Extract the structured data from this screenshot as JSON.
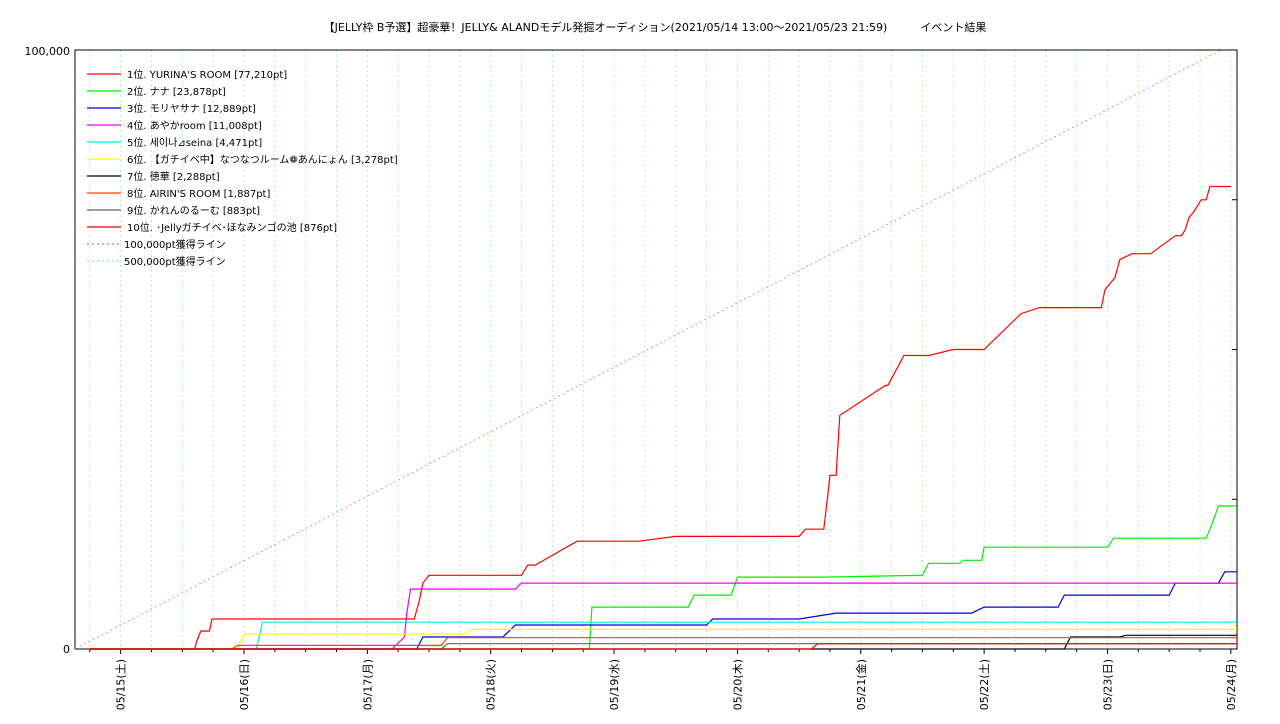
{
  "chart_data": {
    "type": "line",
    "title": "【JELLY枠 B予選】超豪華！JELLY& ALANDモデル発掘オーディション(2021/05/14 13:00〜2021/05/23 21:59)　　　イベント結果",
    "xlabel": "",
    "ylabel": "",
    "ylim": [
      0,
      100000
    ],
    "y_ticks": [
      "0",
      "100,000"
    ],
    "x_ticks": [
      "05/15(土)",
      "05/16(日)",
      "05/17(月)",
      "05/18(火)",
      "05/19(水)",
      "05/20(木)",
      "05/21(金)",
      "05/22(土)",
      "05/23(日)",
      "05/24(月)"
    ],
    "x_unit": "days since 2021-05-15 00:00",
    "x_range": [
      -0.37,
      9.05
    ],
    "grid": true,
    "legend_position": "top-left",
    "series": [
      {
        "name": "1位. YURINA'S ROOM [77,210pt]",
        "color": "#ff0000",
        "x": [
          -0.25,
          0.6,
          0.62,
          0.65,
          0.72,
          0.74,
          1.5,
          1.65,
          1.68,
          1.7,
          2.38,
          2.42,
          2.45,
          2.5,
          2.53,
          2.6,
          3.25,
          3.3,
          3.32,
          3.36,
          3.7,
          3.74,
          4.2,
          4.5,
          4.8,
          4.84,
          5.5,
          5.55,
          5.6,
          5.62,
          5.7,
          5.74,
          5.75,
          5.8,
          5.83,
          6.2,
          6.22,
          6.35,
          6.4,
          6.5,
          6.55,
          6.75,
          7.0,
          7.3,
          7.45,
          7.5,
          7.55,
          7.95,
          7.98,
          8.06,
          8.1,
          8.2,
          8.25,
          8.3,
          8.35,
          8.55,
          8.6,
          8.63,
          8.66,
          8.7,
          8.76,
          8.8,
          8.83,
          8.85,
          8.9,
          8.93,
          8.96,
          9.0
        ],
        "values": [
          0,
          0,
          1500,
          3000,
          3000,
          5000,
          5000,
          5000,
          5000,
          5000,
          5000,
          8000,
          11000,
          12300,
          12300,
          12300,
          12300,
          14000,
          14000,
          14000,
          18000,
          18000,
          18000,
          18800,
          18800,
          18800,
          18800,
          20000,
          20000,
          20000,
          20000,
          27000,
          29000,
          29000,
          39000,
          44000,
          44000,
          49000,
          49000,
          49000,
          49000,
          50000,
          50000,
          56000,
          57000,
          57000,
          57000,
          57000,
          60000,
          62000,
          65000,
          66000,
          66000,
          66000,
          66000,
          69000,
          69000,
          70000,
          72000,
          73000,
          75000,
          75000,
          77210,
          77210,
          77210,
          77210,
          77210,
          77210
        ]
      },
      {
        "name": "2位. ナナ [23,878pt]",
        "color": "#00ee00",
        "x": [
          -0.25,
          3.8,
          3.82,
          4.2,
          4.6,
          4.65,
          4.95,
          5.0,
          5.7,
          6.5,
          6.55,
          6.8,
          6.83,
          6.98,
          7.0,
          8.0,
          8.05,
          8.8,
          8.85,
          8.9,
          9.05
        ],
        "values": [
          0,
          0,
          7000,
          7000,
          7000,
          9000,
          9000,
          12000,
          12000,
          12300,
          14300,
          14300,
          14800,
          14800,
          17000,
          17000,
          18500,
          18500,
          21000,
          23878,
          23878
        ]
      },
      {
        "name": "3位. モリヤサナ [12,889pt]",
        "color": "#0000dd",
        "x": [
          -0.25,
          1.5,
          1.52,
          1.55,
          2.4,
          2.45,
          3.1,
          3.2,
          3.9,
          4.75,
          4.8,
          5.5,
          5.8,
          6.0,
          6.9,
          7.0,
          7.6,
          7.65,
          8.0,
          8.2,
          8.5,
          8.55,
          8.9,
          8.95,
          9.05
        ],
        "values": [
          0,
          0,
          0,
          0,
          0,
          2000,
          2000,
          4000,
          4000,
          4000,
          5000,
          5000,
          6000,
          6000,
          6000,
          7000,
          7000,
          9000,
          9000,
          9000,
          9000,
          11000,
          11000,
          12889,
          12889
        ]
      },
      {
        "name": "4位. あやかroom [11,008pt]",
        "color": "#ee00ee",
        "x": [
          -0.25,
          2.2,
          2.3,
          2.32,
          2.35,
          2.38,
          2.4,
          3.2,
          3.25,
          9.05
        ],
        "values": [
          0,
          0,
          2000,
          6000,
          10000,
          10000,
          10000,
          10000,
          11008,
          11008
        ]
      },
      {
        "name": "5位. 세이나⊿seina [4,471pt]",
        "color": "#00eeee",
        "x": [
          -0.25,
          1.1,
          1.15,
          9.05
        ],
        "values": [
          0,
          0,
          4471,
          4471
        ]
      },
      {
        "name": "6位. 【ガチイベ中】なつなつルーム❁あんにょん [3,278pt]",
        "color": "#ffff00",
        "x": [
          -0.25,
          0.95,
          1.0,
          2.8,
          2.85,
          9.05
        ],
        "values": [
          0,
          0,
          2500,
          2500,
          3278,
          3278
        ]
      },
      {
        "name": "7位. 徳華 [2,288pt]",
        "color": "#000000",
        "x": [
          -0.25,
          7.65,
          7.7,
          8.1,
          8.15,
          9.05
        ],
        "values": [
          0,
          0,
          2000,
          2000,
          2288,
          2288
        ]
      },
      {
        "name": "8位. AIRIN'S ROOM [1,887pt]",
        "color": "#ff4400",
        "x": [
          -0.25,
          0.9,
          0.95,
          2.6,
          2.65,
          9.05
        ],
        "values": [
          0,
          0,
          600,
          600,
          1887,
          1887
        ]
      },
      {
        "name": "9位. かれんのるーむ [883pt]",
        "color": "#666666",
        "x": [
          -0.25,
          2.6,
          2.65,
          9.05
        ],
        "values": [
          0,
          0,
          883,
          883
        ]
      },
      {
        "name": "10位. ･Jellyガチイベ･ほなみンゴの池 [876pt]",
        "color": "#ee0000",
        "x": [
          -0.25,
          5.6,
          5.65,
          9.05
        ],
        "values": [
          0,
          0,
          876,
          876
        ]
      },
      {
        "name": "100,000pt獲得ライン",
        "color": "#ff6666",
        "dashed": true,
        "x": [
          -0.37,
          8.92
        ],
        "values": [
          0,
          100000
        ]
      },
      {
        "name": "500,000pt獲得ライン",
        "color": "#88ee88",
        "dashed": true,
        "x": [],
        "values": []
      }
    ]
  }
}
